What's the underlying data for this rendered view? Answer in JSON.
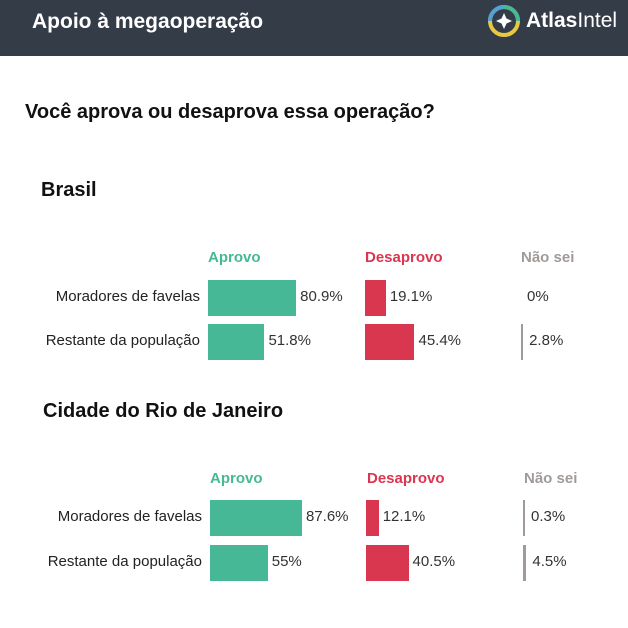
{
  "header": {
    "title": "Apoio à megaoperação",
    "brand_bold": "Atlas",
    "brand_light": "Intel"
  },
  "question": "Você aprova ou desaprova essa operação?",
  "colors": {
    "header_bg": "#343c48",
    "aprovo": "#47b896",
    "desaprovo": "#d9364f",
    "nao_sei": "#a09b99"
  },
  "columns": [
    "Aprovo",
    "Desaprovo",
    "Não sei"
  ],
  "chart_data": [
    {
      "type": "bar",
      "title": "Brasil",
      "categories": [
        "Moradores de favelas",
        "Restante da população"
      ],
      "series": [
        {
          "name": "Aprovo",
          "values": [
            80.9,
            51.8
          ],
          "labels": [
            "80.9%",
            "51.8%"
          ]
        },
        {
          "name": "Desaprovo",
          "values": [
            19.1,
            45.4
          ],
          "labels": [
            "19.1%",
            "45.4%"
          ]
        },
        {
          "name": "Não sei",
          "values": [
            0,
            2.8
          ],
          "labels": [
            "0%",
            "2.8%"
          ]
        }
      ],
      "orientation": "horizontal",
      "unit": "%",
      "xlim": [
        0,
        100
      ]
    },
    {
      "type": "bar",
      "title": "Cidade do Rio de Janeiro",
      "categories": [
        "Moradores de favelas",
        "Restante da população"
      ],
      "series": [
        {
          "name": "Aprovo",
          "values": [
            87.6,
            55
          ],
          "labels": [
            "87.6%",
            "55%"
          ]
        },
        {
          "name": "Desaprovo",
          "values": [
            12.1,
            40.5
          ],
          "labels": [
            "12.1%",
            "40.5%"
          ]
        },
        {
          "name": "Não sei",
          "values": [
            0.3,
            4.5
          ],
          "labels": [
            "0.3%",
            "4.5%"
          ]
        }
      ],
      "orientation": "horizontal",
      "unit": "%",
      "xlim": [
        0,
        100
      ]
    }
  ]
}
